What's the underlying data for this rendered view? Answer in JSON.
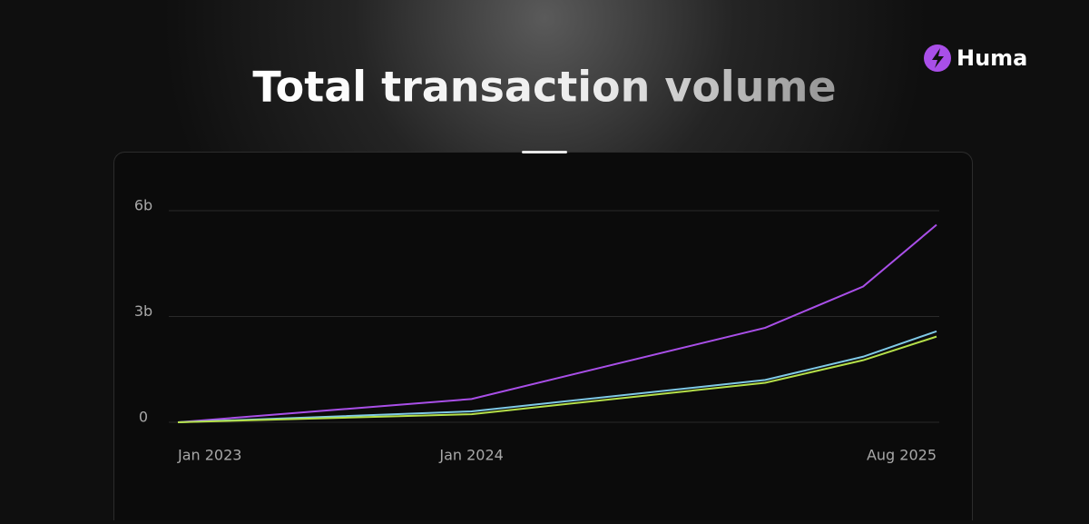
{
  "brand": "Huma",
  "chart_data": {
    "type": "line",
    "title": "Total transaction volume",
    "x": [
      "2023-01",
      "2024-01",
      "2025-01",
      "2025-05",
      "2025-08"
    ],
    "series": [
      {
        "color": "#a94fe8",
        "values": [
          0,
          660000000,
          2680000000,
          3850000000,
          5600000000
        ]
      },
      {
        "color": "#7fc9e6",
        "values": [
          0,
          310000000,
          1200000000,
          1860000000,
          2580000000
        ]
      },
      {
        "color": "#b5e04a",
        "values": [
          0,
          230000000,
          1120000000,
          1760000000,
          2430000000
        ]
      }
    ],
    "xlim": [
      "2023-01",
      "2025-08"
    ],
    "xticks": [
      {
        "value": "2023-01",
        "label": "Jan 2023"
      },
      {
        "value": "2024-01",
        "label": "Jan 2024"
      },
      {
        "value": "2025-08",
        "label": "Aug 2025"
      }
    ],
    "ylim": [
      0,
      6000000000
    ],
    "yticks": [
      0,
      {
        "value": 3000000000,
        "label": "3b"
      },
      {
        "value": 6000000000,
        "label": "6b"
      }
    ],
    "grid": true
  }
}
